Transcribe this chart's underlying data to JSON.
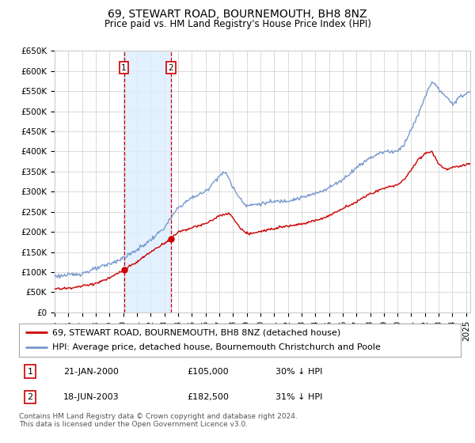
{
  "title": "69, STEWART ROAD, BOURNEMOUTH, BH8 8NZ",
  "subtitle": "Price paid vs. HM Land Registry's House Price Index (HPI)",
  "ylim": [
    0,
    650000
  ],
  "yticks": [
    0,
    50000,
    100000,
    150000,
    200000,
    250000,
    300000,
    350000,
    400000,
    450000,
    500000,
    550000,
    600000,
    650000
  ],
  "xlim_start": 1995.0,
  "xlim_end": 2025.3,
  "background_color": "#ffffff",
  "grid_color": "#cccccc",
  "hpi_color": "#7799cc",
  "price_paid_color": "#cc0000",
  "shade_color": "#ddeeff",
  "purchase1_x": 2000.05,
  "purchase1_y": 105000,
  "purchase2_x": 2003.46,
  "purchase2_y": 182500,
  "legend_label_red": "69, STEWART ROAD, BOURNEMOUTH, BH8 8NZ (detached house)",
  "legend_label_blue": "HPI: Average price, detached house, Bournemouth Christchurch and Poole",
  "table_row1_num": "1",
  "table_row1_date": "21-JAN-2000",
  "table_row1_price": "£105,000",
  "table_row1_hpi": "30% ↓ HPI",
  "table_row2_num": "2",
  "table_row2_date": "18-JUN-2003",
  "table_row2_price": "£182,500",
  "table_row2_hpi": "31% ↓ HPI",
  "footnote": "Contains HM Land Registry data © Crown copyright and database right 2024.\nThis data is licensed under the Open Government Licence v3.0.",
  "title_fontsize": 10,
  "subtitle_fontsize": 8.5,
  "axis_fontsize": 7.5,
  "legend_fontsize": 8,
  "table_fontsize": 8,
  "footnote_fontsize": 6.5,
  "hpi_knots_x": [
    1995,
    1996,
    1997,
    1998,
    1999,
    2000,
    2001,
    2002,
    2003,
    2004,
    2005,
    2006,
    2007,
    2007.5,
    2008,
    2008.5,
    2009,
    2010,
    2011,
    2012,
    2013,
    2014,
    2015,
    2016,
    2017,
    2018,
    2019,
    2020,
    2020.5,
    2021,
    2021.5,
    2022,
    2022.5,
    2023,
    2023.5,
    2024,
    2025,
    2025.3
  ],
  "hpi_knots_y": [
    90000,
    92000,
    97000,
    108000,
    120000,
    135000,
    155000,
    180000,
    210000,
    260000,
    285000,
    300000,
    340000,
    348000,
    310000,
    285000,
    265000,
    270000,
    275000,
    278000,
    285000,
    295000,
    310000,
    330000,
    360000,
    385000,
    400000,
    400000,
    420000,
    455000,
    490000,
    535000,
    575000,
    555000,
    535000,
    520000,
    545000,
    548000
  ],
  "pp_knots_x": [
    1995,
    1996,
    1997,
    1998,
    1999,
    2000.05,
    2001,
    2002,
    2003.46,
    2004,
    2005,
    2006,
    2007,
    2007.8,
    2008.5,
    2009,
    2010,
    2011,
    2012,
    2013,
    2014,
    2015,
    2016,
    2017,
    2018,
    2019,
    2020,
    2020.5,
    2021,
    2021.5,
    2022,
    2022.5,
    2023,
    2023.5,
    2024,
    2025,
    2025.3
  ],
  "pp_knots_y": [
    58000,
    60000,
    65000,
    72000,
    85000,
    105000,
    125000,
    150000,
    182500,
    200000,
    210000,
    220000,
    240000,
    245000,
    210000,
    195000,
    200000,
    210000,
    215000,
    220000,
    228000,
    240000,
    258000,
    275000,
    295000,
    308000,
    318000,
    330000,
    355000,
    380000,
    395000,
    400000,
    370000,
    355000,
    360000,
    368000,
    370000
  ]
}
